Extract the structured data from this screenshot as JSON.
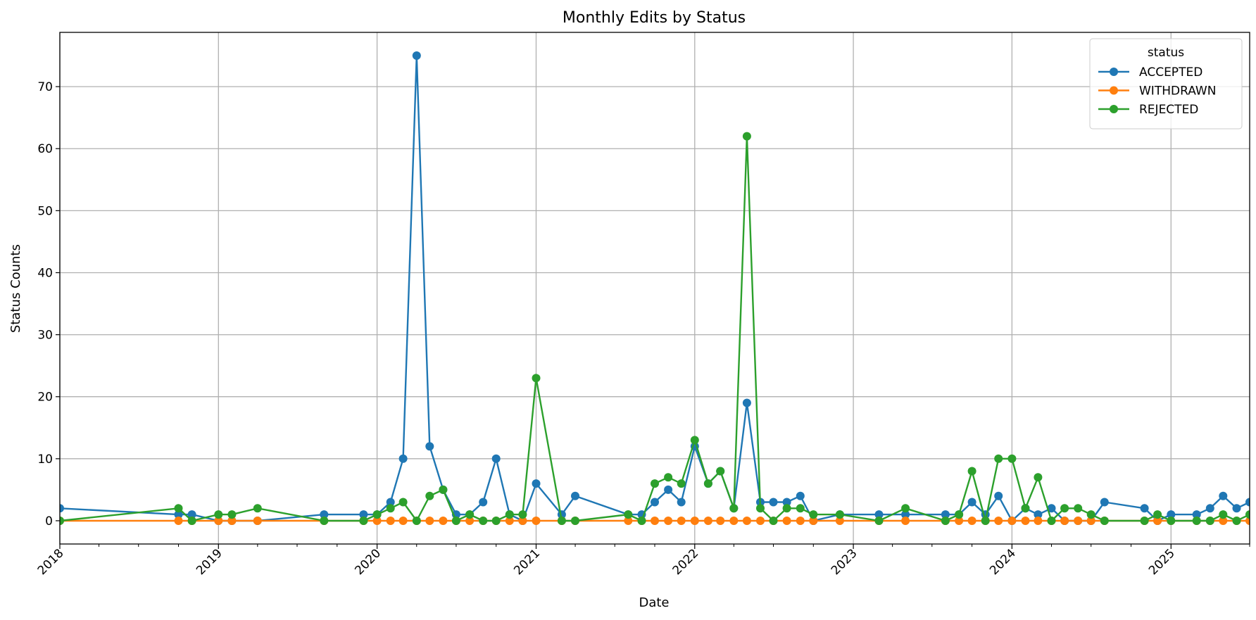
{
  "chart_data": {
    "type": "line",
    "title": "Monthly Edits by Status",
    "xlabel": "Date",
    "ylabel": "Status Counts",
    "xlim": [
      "2018-01-01",
      "2025-07-01"
    ],
    "ylim": [
      -3.75,
      78.75
    ],
    "grid": true,
    "x_ticks": [
      "2018",
      "2019",
      "2020",
      "2021",
      "2022",
      "2023",
      "2024",
      "2025"
    ],
    "y_ticks": [
      0,
      10,
      20,
      30,
      40,
      50,
      60,
      70
    ],
    "legend": {
      "title": "status",
      "placement": "top-right"
    },
    "series": [
      {
        "name": "ACCEPTED",
        "color": "#1f77b4",
        "points": [
          [
            "2018-01-01",
            2
          ],
          [
            "2018-10-01",
            1
          ],
          [
            "2018-11-01",
            1
          ],
          [
            "2019-01-01",
            0
          ],
          [
            "2019-02-01",
            0
          ],
          [
            "2019-04-01",
            0
          ],
          [
            "2019-09-01",
            1
          ],
          [
            "2019-12-01",
            1
          ],
          [
            "2020-01-01",
            1
          ],
          [
            "2020-02-01",
            3
          ],
          [
            "2020-03-01",
            10
          ],
          [
            "2020-04-01",
            75
          ],
          [
            "2020-05-01",
            12
          ],
          [
            "2020-06-01",
            5
          ],
          [
            "2020-07-01",
            1
          ],
          [
            "2020-08-01",
            1
          ],
          [
            "2020-09-01",
            3
          ],
          [
            "2020-10-01",
            10
          ],
          [
            "2020-11-01",
            1
          ],
          [
            "2020-12-01",
            0
          ],
          [
            "2021-01-01",
            6
          ],
          [
            "2021-03-01",
            1
          ],
          [
            "2021-04-01",
            4
          ],
          [
            "2021-08-01",
            1
          ],
          [
            "2021-09-01",
            1
          ],
          [
            "2021-10-01",
            3
          ],
          [
            "2021-11-01",
            5
          ],
          [
            "2021-12-01",
            3
          ],
          [
            "2022-01-01",
            12
          ],
          [
            "2022-02-01",
            6
          ],
          [
            "2022-03-01",
            8
          ],
          [
            "2022-04-01",
            2
          ],
          [
            "2022-05-01",
            19
          ],
          [
            "2022-06-01",
            3
          ],
          [
            "2022-07-01",
            3
          ],
          [
            "2022-08-01",
            3
          ],
          [
            "2022-09-01",
            4
          ],
          [
            "2022-10-01",
            0
          ],
          [
            "2022-12-01",
            1
          ],
          [
            "2023-03-01",
            1
          ],
          [
            "2023-05-01",
            1
          ],
          [
            "2023-08-01",
            1
          ],
          [
            "2023-09-01",
            1
          ],
          [
            "2023-10-01",
            3
          ],
          [
            "2023-11-01",
            1
          ],
          [
            "2023-12-01",
            4
          ],
          [
            "2024-01-01",
            0
          ],
          [
            "2024-02-01",
            2
          ],
          [
            "2024-03-01",
            1
          ],
          [
            "2024-04-01",
            2
          ],
          [
            "2024-05-01",
            0
          ],
          [
            "2024-06-01",
            0
          ],
          [
            "2024-07-01",
            0
          ],
          [
            "2024-08-01",
            3
          ],
          [
            "2024-11-01",
            2
          ],
          [
            "2024-12-01",
            0
          ],
          [
            "2025-01-01",
            1
          ],
          [
            "2025-03-01",
            1
          ],
          [
            "2025-04-01",
            2
          ],
          [
            "2025-05-01",
            4
          ],
          [
            "2025-06-01",
            2
          ],
          [
            "2025-07-01",
            3
          ]
        ]
      },
      {
        "name": "WITHDRAWN",
        "color": "#ff7f0e",
        "points": [
          [
            "2018-01-01",
            0
          ],
          [
            "2018-10-01",
            0
          ],
          [
            "2018-11-01",
            0
          ],
          [
            "2019-01-01",
            0
          ],
          [
            "2019-02-01",
            0
          ],
          [
            "2019-04-01",
            0
          ],
          [
            "2019-09-01",
            0
          ],
          [
            "2019-12-01",
            0
          ],
          [
            "2020-01-01",
            0
          ],
          [
            "2020-02-01",
            0
          ],
          [
            "2020-03-01",
            0
          ],
          [
            "2020-04-01",
            0
          ],
          [
            "2020-05-01",
            0
          ],
          [
            "2020-06-01",
            0
          ],
          [
            "2020-07-01",
            0
          ],
          [
            "2020-08-01",
            0
          ],
          [
            "2020-09-01",
            0
          ],
          [
            "2020-10-01",
            0
          ],
          [
            "2020-11-01",
            0
          ],
          [
            "2020-12-01",
            0
          ],
          [
            "2021-01-01",
            0
          ],
          [
            "2021-03-01",
            0
          ],
          [
            "2021-04-01",
            0
          ],
          [
            "2021-08-01",
            0
          ],
          [
            "2021-09-01",
            0
          ],
          [
            "2021-10-01",
            0
          ],
          [
            "2021-11-01",
            0
          ],
          [
            "2021-12-01",
            0
          ],
          [
            "2022-01-01",
            0
          ],
          [
            "2022-02-01",
            0
          ],
          [
            "2022-03-01",
            0
          ],
          [
            "2022-04-01",
            0
          ],
          [
            "2022-05-01",
            0
          ],
          [
            "2022-06-01",
            0
          ],
          [
            "2022-07-01",
            0
          ],
          [
            "2022-08-01",
            0
          ],
          [
            "2022-09-01",
            0
          ],
          [
            "2022-10-01",
            0
          ],
          [
            "2022-12-01",
            0
          ],
          [
            "2023-03-01",
            0
          ],
          [
            "2023-05-01",
            0
          ],
          [
            "2023-08-01",
            0
          ],
          [
            "2023-09-01",
            0
          ],
          [
            "2023-10-01",
            0
          ],
          [
            "2023-11-01",
            0
          ],
          [
            "2023-12-01",
            0
          ],
          [
            "2024-01-01",
            0
          ],
          [
            "2024-02-01",
            0
          ],
          [
            "2024-03-01",
            0
          ],
          [
            "2024-04-01",
            0
          ],
          [
            "2024-05-01",
            0
          ],
          [
            "2024-06-01",
            0
          ],
          [
            "2024-07-01",
            0
          ],
          [
            "2024-08-01",
            0
          ],
          [
            "2024-11-01",
            0
          ],
          [
            "2024-12-01",
            0
          ],
          [
            "2025-01-01",
            0
          ],
          [
            "2025-03-01",
            0
          ],
          [
            "2025-04-01",
            0
          ],
          [
            "2025-05-01",
            0
          ],
          [
            "2025-06-01",
            0
          ],
          [
            "2025-07-01",
            0
          ]
        ]
      },
      {
        "name": "REJECTED",
        "color": "#2ca02c",
        "points": [
          [
            "2018-01-01",
            0
          ],
          [
            "2018-10-01",
            2
          ],
          [
            "2018-11-01",
            0
          ],
          [
            "2019-01-01",
            1
          ],
          [
            "2019-02-01",
            1
          ],
          [
            "2019-04-01",
            2
          ],
          [
            "2019-09-01",
            0
          ],
          [
            "2019-12-01",
            0
          ],
          [
            "2020-01-01",
            1
          ],
          [
            "2020-02-01",
            2
          ],
          [
            "2020-03-01",
            3
          ],
          [
            "2020-04-01",
            0
          ],
          [
            "2020-05-01",
            4
          ],
          [
            "2020-06-01",
            5
          ],
          [
            "2020-07-01",
            0
          ],
          [
            "2020-08-01",
            1
          ],
          [
            "2020-09-01",
            0
          ],
          [
            "2020-10-01",
            0
          ],
          [
            "2020-11-01",
            1
          ],
          [
            "2020-12-01",
            1
          ],
          [
            "2021-01-01",
            23
          ],
          [
            "2021-03-01",
            0
          ],
          [
            "2021-04-01",
            0
          ],
          [
            "2021-08-01",
            1
          ],
          [
            "2021-09-01",
            0
          ],
          [
            "2021-10-01",
            6
          ],
          [
            "2021-11-01",
            7
          ],
          [
            "2021-12-01",
            6
          ],
          [
            "2022-01-01",
            13
          ],
          [
            "2022-02-01",
            6
          ],
          [
            "2022-03-01",
            8
          ],
          [
            "2022-04-01",
            2
          ],
          [
            "2022-05-01",
            62
          ],
          [
            "2022-06-01",
            2
          ],
          [
            "2022-07-01",
            0
          ],
          [
            "2022-08-01",
            2
          ],
          [
            "2022-09-01",
            2
          ],
          [
            "2022-10-01",
            1
          ],
          [
            "2022-12-01",
            1
          ],
          [
            "2023-03-01",
            0
          ],
          [
            "2023-05-01",
            2
          ],
          [
            "2023-08-01",
            0
          ],
          [
            "2023-09-01",
            1
          ],
          [
            "2023-10-01",
            8
          ],
          [
            "2023-11-01",
            0
          ],
          [
            "2023-12-01",
            10
          ],
          [
            "2024-01-01",
            10
          ],
          [
            "2024-02-01",
            2
          ],
          [
            "2024-03-01",
            7
          ],
          [
            "2024-04-01",
            0
          ],
          [
            "2024-05-01",
            2
          ],
          [
            "2024-06-01",
            2
          ],
          [
            "2024-07-01",
            1
          ],
          [
            "2024-08-01",
            0
          ],
          [
            "2024-11-01",
            0
          ],
          [
            "2024-12-01",
            1
          ],
          [
            "2025-01-01",
            0
          ],
          [
            "2025-03-01",
            0
          ],
          [
            "2025-04-01",
            0
          ],
          [
            "2025-05-01",
            1
          ],
          [
            "2025-06-01",
            0
          ],
          [
            "2025-07-01",
            1
          ]
        ]
      }
    ]
  }
}
